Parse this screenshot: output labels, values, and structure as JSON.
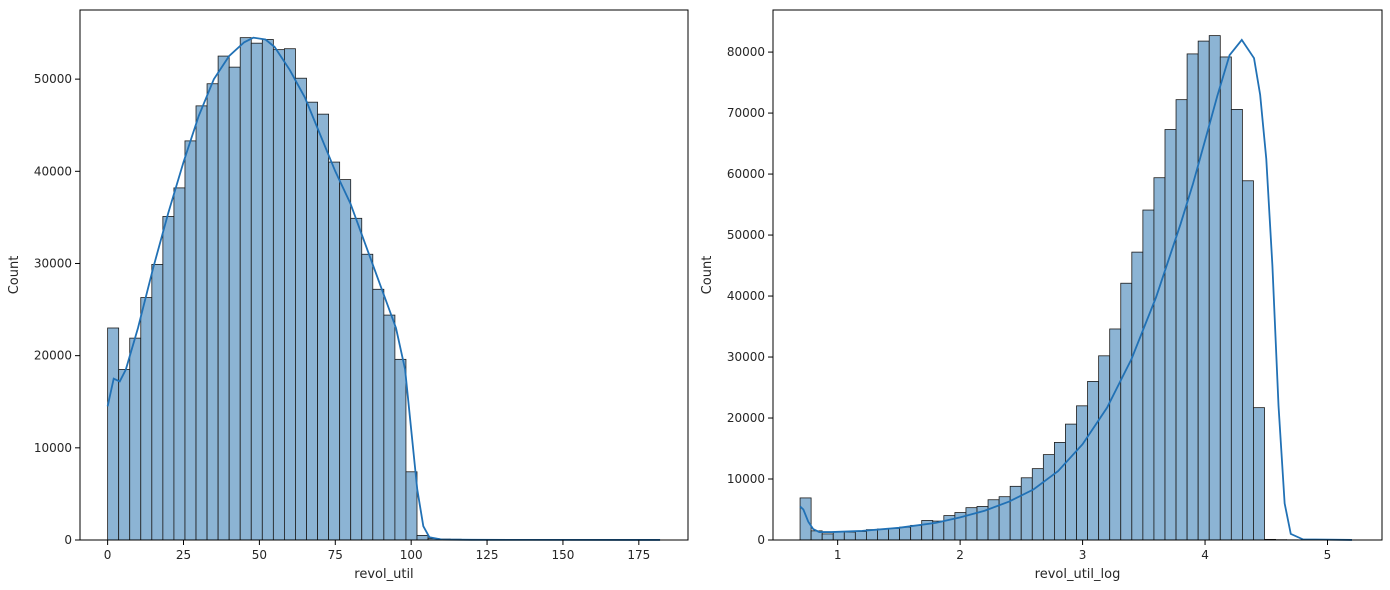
{
  "chart_data": [
    {
      "type": "bar",
      "subtype": "histogram-with-kde",
      "xlabel": "revol_util",
      "ylabel": "Count",
      "xlim": [
        -9.1,
        191.2
      ],
      "ylim": [
        0,
        57500
      ],
      "xticks": [
        0,
        25,
        50,
        75,
        100,
        125,
        150,
        175
      ],
      "yticks": [
        0,
        10000,
        20000,
        30000,
        40000,
        50000
      ],
      "bin_start": 0,
      "bin_width": 3.64,
      "color": "#8cb4d4",
      "line_color": "#2171b5",
      "values": [
        23000,
        18500,
        21900,
        26300,
        29900,
        35100,
        38200,
        43300,
        47100,
        49500,
        52500,
        51300,
        54500,
        53900,
        54300,
        53200,
        53300,
        50100,
        47500,
        46200,
        41000,
        39100,
        34900,
        31000,
        27200,
        24400,
        19600,
        7400,
        500,
        150,
        100,
        80,
        60,
        50,
        40,
        30,
        30,
        25,
        20,
        20,
        15,
        15,
        10,
        10,
        10,
        5,
        5,
        5,
        5,
        5
      ],
      "kde": {
        "x": [
          0,
          2,
          4,
          6,
          10,
          15,
          20,
          25,
          30,
          35,
          40,
          45,
          48,
          52,
          55,
          60,
          65,
          70,
          75,
          80,
          85,
          90,
          95,
          98,
          100,
          102,
          104,
          106,
          110,
          120,
          140,
          182
        ],
        "y": [
          14500,
          17500,
          17200,
          18500,
          23000,
          29500,
          35500,
          41000,
          46000,
          50000,
          52500,
          54000,
          54500,
          54300,
          53500,
          51000,
          48000,
          44000,
          40000,
          36500,
          32000,
          27500,
          23000,
          18500,
          12000,
          5500,
          1500,
          300,
          50,
          20,
          10,
          5
        ]
      },
      "grid": false,
      "legend": "none"
    },
    {
      "type": "bar",
      "subtype": "histogram-with-kde",
      "xlabel": "revol_util_log",
      "ylabel": "Count",
      "xlim": [
        0.472,
        5.445
      ],
      "ylim": [
        0,
        86900
      ],
      "xticks": [
        1,
        2,
        3,
        4,
        5
      ],
      "yticks": [
        0,
        10000,
        20000,
        30000,
        40000,
        50000,
        60000,
        70000,
        80000
      ],
      "bin_start": 0.693,
      "bin_width": 0.0903,
      "color": "#8cb4d4",
      "line_color": "#2171b5",
      "values": [
        6900,
        1500,
        1000,
        1300,
        1300,
        1400,
        1700,
        1800,
        1900,
        2100,
        2400,
        3200,
        3100,
        4000,
        4500,
        5300,
        5500,
        6600,
        7100,
        8800,
        10200,
        11700,
        14000,
        16000,
        19000,
        22000,
        26000,
        30200,
        34600,
        42100,
        47200,
        54100,
        59400,
        67300,
        72200,
        79700,
        81800,
        82700,
        79200,
        70600,
        58900,
        21700,
        100,
        50,
        30,
        20,
        10,
        10,
        5,
        5
      ],
      "kde": {
        "x": [
          0.693,
          0.72,
          0.76,
          0.8,
          0.85,
          0.95,
          1.2,
          1.5,
          1.8,
          2.0,
          2.2,
          2.4,
          2.6,
          2.8,
          3.0,
          3.2,
          3.4,
          3.6,
          3.8,
          3.9,
          4.0,
          4.1,
          4.2,
          4.3,
          4.4,
          4.45,
          4.5,
          4.55,
          4.6,
          4.65,
          4.7,
          4.8,
          5.2
        ],
        "y": [
          5500,
          5000,
          3000,
          1800,
          1300,
          1300,
          1500,
          2000,
          2800,
          3700,
          4800,
          6300,
          8300,
          11300,
          15700,
          21700,
          29700,
          39800,
          51800,
          58300,
          65500,
          72800,
          79500,
          82000,
          79000,
          73000,
          62500,
          45000,
          22000,
          6000,
          1000,
          100,
          10
        ]
      },
      "grid": false,
      "legend": "none"
    }
  ]
}
